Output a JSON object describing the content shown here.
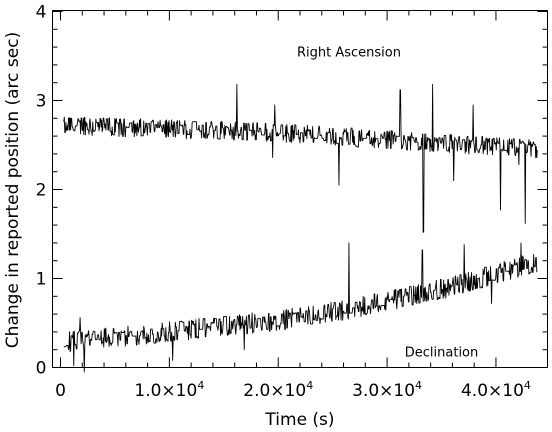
{
  "chart_data": {
    "type": "line",
    "xlabel": "Time (s)",
    "ylabel": "Change in reported position (arc sec)",
    "xlim": [
      0,
      44000
    ],
    "ylim": [
      0,
      4
    ],
    "grid": false,
    "x_ticks": [
      {
        "value": 0,
        "label": "0",
        "base": "0",
        "exp": ""
      },
      {
        "value": 10000,
        "label": "1.0×10^4",
        "base": "1.0×10",
        "exp": "4"
      },
      {
        "value": 20000,
        "label": "2.0×10^4",
        "base": "2.0×10",
        "exp": "4"
      },
      {
        "value": 30000,
        "label": "3.0×10^4",
        "base": "3.0×10",
        "exp": "4"
      },
      {
        "value": 40000,
        "label": "4.0×10^4",
        "base": "4.0×10",
        "exp": "4"
      }
    ],
    "y_ticks": [
      {
        "value": 0,
        "label": "0"
      },
      {
        "value": 1,
        "label": "1"
      },
      {
        "value": 2,
        "label": "2"
      },
      {
        "value": 3,
        "label": "3"
      },
      {
        "value": 4,
        "label": "4"
      }
    ],
    "annotations": [
      {
        "text": "Right Ascension",
        "x": 26500,
        "y": 3.55
      },
      {
        "text": "Declination",
        "x": 35000,
        "y": 0.18
      }
    ],
    "series": [
      {
        "name": "Right Ascension",
        "x_start": 300,
        "x_end": 43800,
        "trend": [
          {
            "x": 0,
            "y": 2.72
          },
          {
            "x": 20000,
            "y": 2.64
          },
          {
            "x": 44000,
            "y": 2.45
          }
        ],
        "spread": 0.18,
        "spikes": [
          {
            "x": 16200,
            "y": 3.18
          },
          {
            "x": 19500,
            "y": 2.36
          },
          {
            "x": 19700,
            "y": 2.95
          },
          {
            "x": 25600,
            "y": 2.05
          },
          {
            "x": 31200,
            "y": 3.12
          },
          {
            "x": 33300,
            "y": 1.52
          },
          {
            "x": 34200,
            "y": 3.18
          },
          {
            "x": 36100,
            "y": 2.1
          },
          {
            "x": 37900,
            "y": 2.95
          },
          {
            "x": 40400,
            "y": 1.77
          },
          {
            "x": 42700,
            "y": 1.62
          },
          {
            "x": 42100,
            "y": 2.28
          }
        ]
      },
      {
        "name": "Declination",
        "x_start": 300,
        "x_end": 43800,
        "trend": [
          {
            "x": 0,
            "y": 0.28
          },
          {
            "x": 10000,
            "y": 0.4
          },
          {
            "x": 20000,
            "y": 0.53
          },
          {
            "x": 25000,
            "y": 0.62
          },
          {
            "x": 30000,
            "y": 0.75
          },
          {
            "x": 35000,
            "y": 0.88
          },
          {
            "x": 40000,
            "y": 1.05
          },
          {
            "x": 44000,
            "y": 1.2
          }
        ],
        "spread": 0.2,
        "spikes": [
          {
            "x": 1200,
            "y": 0.02
          },
          {
            "x": 1800,
            "y": 0.56
          },
          {
            "x": 2200,
            "y": -0.05
          },
          {
            "x": 10300,
            "y": 0.08
          },
          {
            "x": 16900,
            "y": 0.2
          },
          {
            "x": 26500,
            "y": 1.4
          },
          {
            "x": 33200,
            "y": 1.32
          },
          {
            "x": 37100,
            "y": 1.38
          },
          {
            "x": 39600,
            "y": 0.72
          },
          {
            "x": 42300,
            "y": 1.4
          }
        ]
      }
    ]
  }
}
